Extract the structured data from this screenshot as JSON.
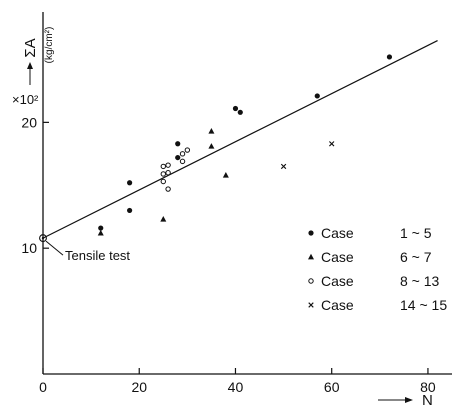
{
  "chart_data": {
    "type": "scatter",
    "title": "",
    "xlabel": "N",
    "ylabel": "ΣA",
    "ylabel_unit": "(kg/cm²)",
    "y_multiplier": "×10²",
    "xlim": [
      0,
      85
    ],
    "ylim": [
      0,
      27.5
    ],
    "x_ticks": [
      "0",
      "20",
      "40",
      "60",
      "80"
    ],
    "x_tick_values": [
      0,
      20,
      40,
      60,
      80
    ],
    "y_ticks": [
      "10",
      "20"
    ],
    "y_tick_values": [
      10,
      20
    ],
    "grid": false,
    "legend_position": "right-center",
    "series": [
      {
        "name": "Case",
        "range": "1 ~ 5",
        "marker": "filled-circle",
        "points": [
          [
            12,
            11.6
          ],
          [
            18,
            15.2
          ],
          [
            18,
            13.0
          ],
          [
            28,
            18.3
          ],
          [
            28,
            17.2
          ],
          [
            40,
            21.1
          ],
          [
            41,
            20.8
          ],
          [
            57,
            22.1
          ],
          [
            72,
            25.2
          ]
        ]
      },
      {
        "name": "Case",
        "range": "6 ~ 7",
        "marker": "filled-triangle",
        "points": [
          [
            12,
            11.2
          ],
          [
            25,
            12.3
          ],
          [
            35,
            19.3
          ],
          [
            35,
            18.1
          ],
          [
            38,
            15.8
          ]
        ]
      },
      {
        "name": "Case",
        "range": "8 ~ 13",
        "marker": "open-circle",
        "points": [
          [
            25,
            16.5
          ],
          [
            25,
            15.9
          ],
          [
            26,
            16.6
          ],
          [
            26,
            16.0
          ],
          [
            25,
            15.3
          ],
          [
            26,
            14.7
          ],
          [
            29,
            16.9
          ],
          [
            29,
            17.5
          ],
          [
            30,
            17.8
          ]
        ]
      },
      {
        "name": "Case",
        "range": "14 ~ 15",
        "marker": "cross",
        "points": [
          [
            50,
            16.5
          ],
          [
            60,
            18.3
          ]
        ]
      }
    ],
    "fit_line": {
      "x": [
        0,
        82
      ],
      "y": [
        10.8,
        26.5
      ]
    },
    "annotations": [
      {
        "text": "Tensile test",
        "x": 0,
        "y": 10.8
      }
    ]
  }
}
